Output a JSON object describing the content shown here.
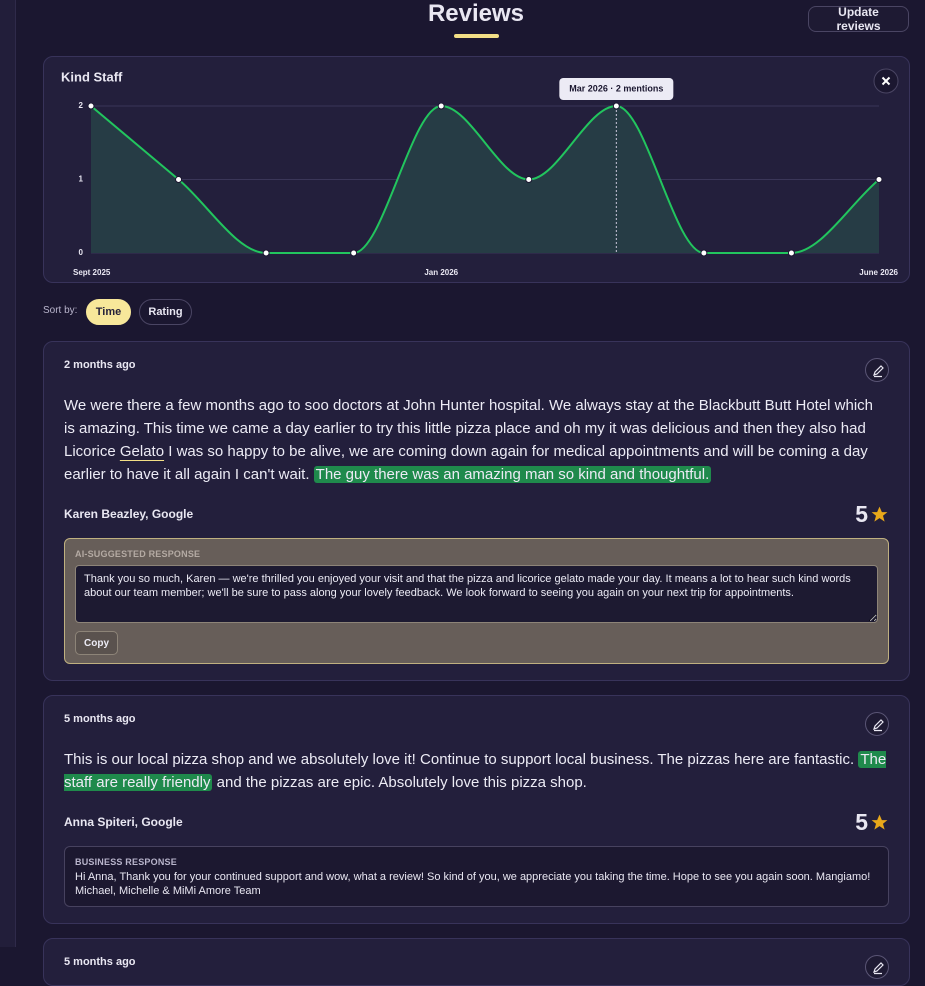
{
  "header": {
    "title": "Reviews",
    "button": "Update reviews"
  },
  "chart_data": {
    "type": "line",
    "title": "Kind Staff",
    "categories": [
      "Sept 2025",
      null,
      null,
      null,
      "Jan 2026",
      null,
      null,
      null,
      null,
      "June 2026"
    ],
    "values": [
      2,
      1,
      0,
      0,
      2,
      1,
      2,
      0,
      0,
      1
    ],
    "color": "#22c55e",
    "fill": "#263c45",
    "ylim": [
      0,
      2
    ],
    "yticks": [
      0,
      1,
      2
    ],
    "grid": true,
    "annotation": {
      "index": 6,
      "text": "Mar 2026 · 2 mentions"
    }
  },
  "sort": {
    "label": "Sort by:",
    "options": [
      "Time",
      "Rating"
    ],
    "active": 0
  },
  "reviews": [
    {
      "age": "2 months ago",
      "segments": [
        {
          "text": "We were there a few months ago to soo doctors at John Hunter hospital. We always stay at the Blackbutt Butt Hotel which is amazing. This time we came a day earlier to try this little pizza place and oh my it was delicious and then they also had Licorice ",
          "style": "plain"
        },
        {
          "text": "Gelato",
          "style": "underline"
        },
        {
          "text": " I was so happy to be alive, we are coming down again for medical appointments and will be coming a day earlier to have it all again I can't wait. ",
          "style": "plain"
        },
        {
          "text": "The guy there was an amazing man so kind and thoughtful.",
          "style": "highlight"
        }
      ],
      "author": "Karen Beazley, Google",
      "rating": 5,
      "response_kind": "ai",
      "response_label": "AI-SUGGESTED RESPONSE",
      "response": "Thank you so much, Karen — we're thrilled you enjoyed your visit and that the pizza and licorice gelato made your day. It means a lot to hear such kind words about our team member; we'll be sure to pass along your lovely feedback. We look forward to seeing you again on your next trip for appointments.",
      "copy": "Copy"
    },
    {
      "age": "5 months ago",
      "segments": [
        {
          "text": "This is our local pizza shop and we absolutely love it! Continue to support local business. The pizzas here are fantastic. ",
          "style": "plain"
        },
        {
          "text": "The staff are really friendly",
          "style": "highlight"
        },
        {
          "text": " and the pizzas are epic. Absolutely love this pizza shop.",
          "style": "plain"
        }
      ],
      "author": "Anna Spiteri, Google",
      "rating": 5,
      "response_kind": "business",
      "response_label": "BUSINESS RESPONSE",
      "response": "Hi Anna, Thank you for your continued support and wow, what a review! So kind of you, we appreciate you taking the time. Hope to see you again soon. Mangiamo! Michael, Michelle & MiMi Amore Team"
    },
    {
      "age": "5 months ago"
    }
  ]
}
